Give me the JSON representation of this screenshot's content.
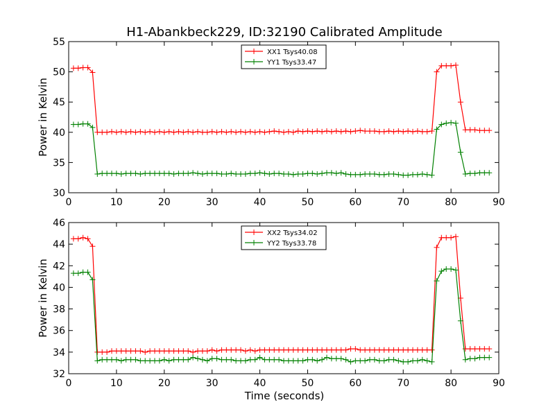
{
  "chart_data": [
    {
      "type": "line",
      "title": "H1-Abankbeck229, ID:32190 Calibrated Amplitude",
      "xlabel": "",
      "ylabel": "Power in Kelvin",
      "xlim": [
        0,
        90
      ],
      "ylim": [
        30,
        55
      ],
      "xticks": [
        0,
        10,
        20,
        30,
        40,
        50,
        60,
        70,
        80,
        90
      ],
      "yticks": [
        30,
        35,
        40,
        45,
        50,
        55
      ],
      "grid": false,
      "legend_position": "top-center",
      "x": [
        1,
        2,
        3,
        4,
        5,
        6,
        7,
        8,
        9,
        10,
        11,
        12,
        13,
        14,
        15,
        16,
        17,
        18,
        19,
        20,
        21,
        22,
        23,
        24,
        25,
        26,
        27,
        28,
        29,
        30,
        31,
        32,
        33,
        34,
        35,
        36,
        37,
        38,
        39,
        40,
        41,
        42,
        43,
        44,
        45,
        46,
        47,
        48,
        49,
        50,
        51,
        52,
        53,
        54,
        55,
        56,
        57,
        58,
        59,
        60,
        61,
        62,
        63,
        64,
        65,
        66,
        67,
        68,
        69,
        70,
        71,
        72,
        73,
        74,
        75,
        76,
        77,
        78,
        79,
        80,
        81,
        82,
        83,
        84,
        85,
        86,
        87,
        88
      ],
      "series": [
        {
          "name": "XX1 Tsys40.08",
          "color": "#ff0000",
          "values": [
            50.6,
            50.6,
            50.7,
            50.7,
            49.9,
            40.0,
            40.0,
            40.0,
            40.1,
            40.0,
            40.1,
            40.0,
            40.1,
            40.0,
            40.1,
            40.0,
            40.1,
            40.0,
            40.1,
            40.0,
            40.1,
            40.0,
            40.1,
            40.0,
            40.1,
            40.0,
            40.1,
            40.0,
            40.0,
            40.1,
            40.0,
            40.1,
            40.0,
            40.1,
            40.0,
            40.1,
            40.0,
            40.1,
            40.0,
            40.1,
            40.0,
            40.1,
            40.2,
            40.1,
            40.0,
            40.1,
            40.0,
            40.2,
            40.1,
            40.2,
            40.1,
            40.2,
            40.1,
            40.2,
            40.1,
            40.2,
            40.1,
            40.2,
            40.1,
            40.2,
            40.3,
            40.2,
            40.2,
            40.2,
            40.1,
            40.1,
            40.2,
            40.1,
            40.2,
            40.1,
            40.2,
            40.1,
            40.2,
            40.1,
            40.1,
            40.2,
            50.0,
            51.0,
            51.0,
            51.0,
            51.1,
            45.0,
            40.4,
            40.4,
            40.4,
            40.3,
            40.3,
            40.3
          ]
        },
        {
          "name": "YY1 Tsys33.47",
          "color": "#008000",
          "values": [
            41.3,
            41.3,
            41.4,
            41.4,
            40.8,
            33.1,
            33.2,
            33.2,
            33.2,
            33.2,
            33.1,
            33.2,
            33.2,
            33.2,
            33.1,
            33.2,
            33.2,
            33.2,
            33.2,
            33.2,
            33.2,
            33.1,
            33.2,
            33.2,
            33.2,
            33.3,
            33.2,
            33.1,
            33.2,
            33.2,
            33.2,
            33.1,
            33.1,
            33.2,
            33.1,
            33.1,
            33.1,
            33.2,
            33.2,
            33.3,
            33.2,
            33.1,
            33.2,
            33.2,
            33.1,
            33.1,
            33.0,
            33.1,
            33.1,
            33.2,
            33.2,
            33.1,
            33.2,
            33.3,
            33.3,
            33.2,
            33.3,
            33.1,
            33.0,
            33.0,
            33.0,
            33.1,
            33.1,
            33.1,
            33.0,
            33.0,
            33.1,
            33.1,
            33.0,
            32.9,
            32.9,
            33.0,
            33.0,
            33.1,
            33.0,
            32.9,
            40.5,
            41.3,
            41.5,
            41.6,
            41.5,
            36.7,
            33.1,
            33.2,
            33.2,
            33.3,
            33.3,
            33.3
          ]
        }
      ]
    },
    {
      "type": "line",
      "title": "",
      "xlabel": "Time (seconds)",
      "ylabel": "Power in Kelvin",
      "xlim": [
        0,
        90
      ],
      "ylim": [
        32,
        46
      ],
      "xticks": [
        0,
        10,
        20,
        30,
        40,
        50,
        60,
        70,
        80,
        90
      ],
      "yticks": [
        32,
        34,
        36,
        38,
        40,
        42,
        44,
        46
      ],
      "grid": false,
      "legend_position": "top-center",
      "x": [
        1,
        2,
        3,
        4,
        5,
        6,
        7,
        8,
        9,
        10,
        11,
        12,
        13,
        14,
        15,
        16,
        17,
        18,
        19,
        20,
        21,
        22,
        23,
        24,
        25,
        26,
        27,
        28,
        29,
        30,
        31,
        32,
        33,
        34,
        35,
        36,
        37,
        38,
        39,
        40,
        41,
        42,
        43,
        44,
        45,
        46,
        47,
        48,
        49,
        50,
        51,
        52,
        53,
        54,
        55,
        56,
        57,
        58,
        59,
        60,
        61,
        62,
        63,
        64,
        65,
        66,
        67,
        68,
        69,
        70,
        71,
        72,
        73,
        74,
        75,
        76,
        77,
        78,
        79,
        80,
        81,
        82,
        83,
        84,
        85,
        86,
        87,
        88
      ],
      "series": [
        {
          "name": "XX2 Tsys34.02",
          "color": "#ff0000",
          "values": [
            44.5,
            44.5,
            44.6,
            44.5,
            43.8,
            34.0,
            34.0,
            34.0,
            34.1,
            34.1,
            34.1,
            34.1,
            34.1,
            34.1,
            34.1,
            34.0,
            34.1,
            34.1,
            34.1,
            34.1,
            34.1,
            34.1,
            34.1,
            34.1,
            34.1,
            34.0,
            34.1,
            34.1,
            34.1,
            34.2,
            34.1,
            34.2,
            34.2,
            34.2,
            34.2,
            34.2,
            34.1,
            34.2,
            34.1,
            34.2,
            34.2,
            34.2,
            34.2,
            34.2,
            34.2,
            34.2,
            34.2,
            34.2,
            34.2,
            34.2,
            34.2,
            34.2,
            34.2,
            34.2,
            34.2,
            34.2,
            34.2,
            34.2,
            34.3,
            34.3,
            34.2,
            34.2,
            34.2,
            34.2,
            34.2,
            34.2,
            34.2,
            34.2,
            34.2,
            34.2,
            34.2,
            34.2,
            34.2,
            34.2,
            34.2,
            34.2,
            43.7,
            44.6,
            44.6,
            44.6,
            44.7,
            39.0,
            34.3,
            34.3,
            34.3,
            34.3,
            34.3,
            34.3
          ]
        },
        {
          "name": "YY2 Tsys33.78",
          "color": "#008000",
          "values": [
            41.3,
            41.3,
            41.4,
            41.4,
            40.7,
            33.2,
            33.3,
            33.3,
            33.3,
            33.3,
            33.2,
            33.3,
            33.3,
            33.3,
            33.2,
            33.2,
            33.2,
            33.2,
            33.2,
            33.3,
            33.2,
            33.3,
            33.3,
            33.3,
            33.3,
            33.5,
            33.4,
            33.3,
            33.2,
            33.4,
            33.4,
            33.3,
            33.3,
            33.3,
            33.2,
            33.2,
            33.2,
            33.3,
            33.3,
            33.5,
            33.3,
            33.3,
            33.3,
            33.3,
            33.2,
            33.2,
            33.2,
            33.2,
            33.2,
            33.3,
            33.3,
            33.2,
            33.3,
            33.5,
            33.4,
            33.4,
            33.4,
            33.3,
            33.1,
            33.2,
            33.2,
            33.2,
            33.3,
            33.3,
            33.2,
            33.2,
            33.3,
            33.3,
            33.2,
            33.1,
            33.1,
            33.2,
            33.2,
            33.3,
            33.2,
            33.1,
            40.6,
            41.5,
            41.7,
            41.7,
            41.6,
            36.9,
            33.3,
            33.4,
            33.4,
            33.5,
            33.5,
            33.5
          ]
        }
      ]
    }
  ]
}
